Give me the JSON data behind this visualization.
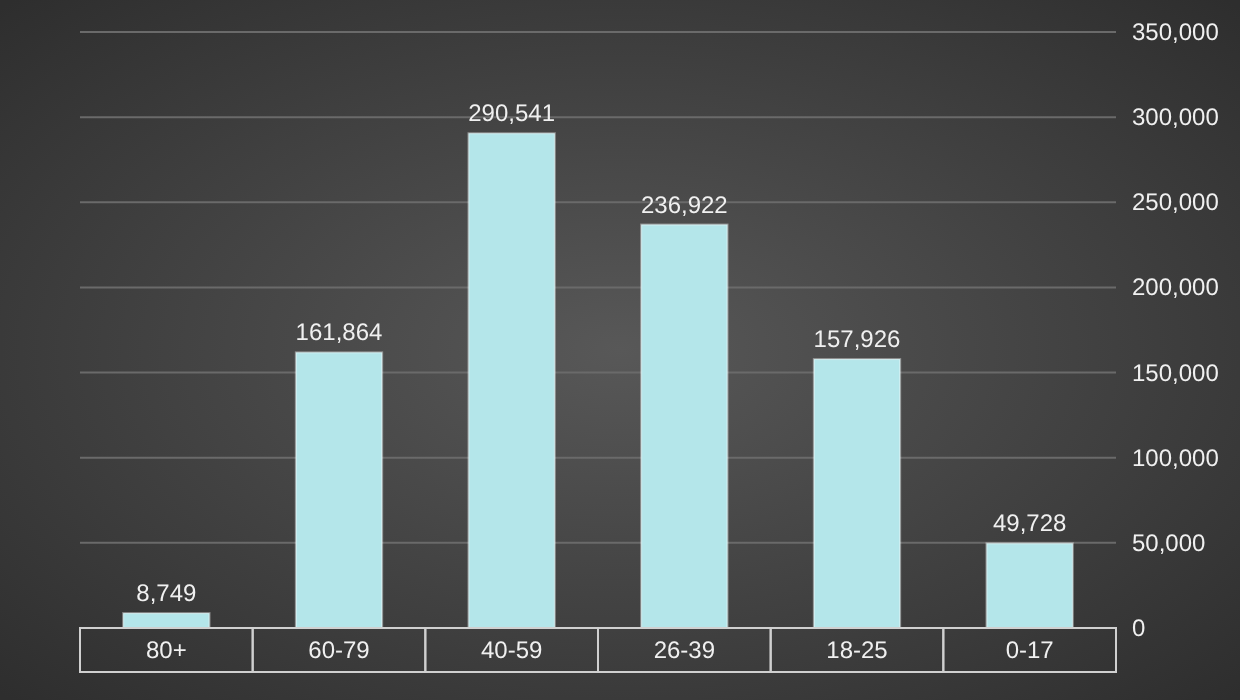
{
  "chart_data": {
    "type": "bar",
    "categories": [
      "80+",
      "60-79",
      "40-59",
      "26-39",
      "18-25",
      "0-17"
    ],
    "values": [
      8749,
      161864,
      290541,
      236922,
      157926,
      49728
    ],
    "color": "#b4e6ea",
    "ylim": [
      0,
      350000
    ],
    "yticks": [
      {
        "value": 0,
        "label": "0"
      },
      {
        "value": 50000,
        "label": "50,000"
      },
      {
        "value": 100000,
        "label": "100,000"
      },
      {
        "value": 150000,
        "label": "150,000"
      },
      {
        "value": 200000,
        "label": "200,000"
      },
      {
        "value": 250000,
        "label": "250,000"
      },
      {
        "value": 300000,
        "label": "300,000"
      },
      {
        "value": 350000,
        "label": "350,000"
      }
    ],
    "value_labels": [
      "8,749",
      "161,864",
      "290,541",
      "236,922",
      "157,926",
      "49,728"
    ],
    "grid": true
  }
}
